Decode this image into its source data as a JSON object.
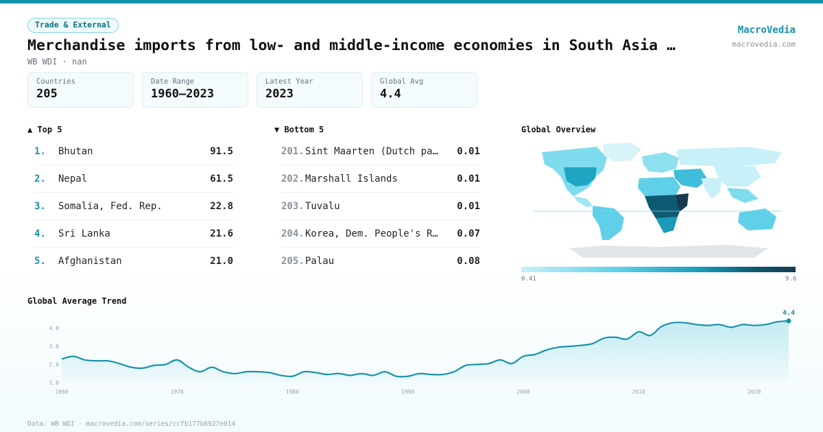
{
  "category": "Trade & External",
  "title": "Merchandise imports from low- and middle-income economies in South Asia …",
  "subtitle": "WB WDI · nan",
  "brand": {
    "name": "MacroVedia",
    "url": "macrovedia.com"
  },
  "stats": [
    {
      "label": "Countries",
      "value": "205"
    },
    {
      "label": "Date Range",
      "value": "1960–2023"
    },
    {
      "label": "Latest Year",
      "value": "2023"
    },
    {
      "label": "Global Avg",
      "value": "4.4"
    }
  ],
  "top5": {
    "heading": "▲ Top 5",
    "items": [
      {
        "rank": "1.",
        "name": "Bhutan",
        "value": "91.5"
      },
      {
        "rank": "2.",
        "name": "Nepal",
        "value": "61.5"
      },
      {
        "rank": "3.",
        "name": "Somalia, Fed. Rep.",
        "value": "22.8"
      },
      {
        "rank": "4.",
        "name": "Sri Lanka",
        "value": "21.6"
      },
      {
        "rank": "5.",
        "name": "Afghanistan",
        "value": "21.0"
      }
    ]
  },
  "bottom5": {
    "heading": "▼ Bottom 5",
    "items": [
      {
        "rank": "201.",
        "name": "Sint Maarten (Dutch pa…",
        "value": "0.01"
      },
      {
        "rank": "202.",
        "name": "Marshall Islands",
        "value": "0.01"
      },
      {
        "rank": "203.",
        "name": "Tuvalu",
        "value": "0.01"
      },
      {
        "rank": "204.",
        "name": "Korea, Dem. People's R…",
        "value": "0.07"
      },
      {
        "rank": "205.",
        "name": "Palau",
        "value": "0.08"
      }
    ]
  },
  "map": {
    "heading": "Global Overview",
    "legend_min": "0.41",
    "legend_max": "9.6",
    "colors": [
      "#c8f0f8",
      "#5fd0e8",
      "#1b9bb8",
      "#0e5a72",
      "#173a4f"
    ]
  },
  "trend": {
    "heading": "Global Average Trend",
    "latest_label": "4.4"
  },
  "footer": "Data: WB WDI · macrovedia.com/series/ccfb177b6927e014",
  "chart_data": {
    "type": "area",
    "title": "Global Average Trend",
    "xlabel": "",
    "ylabel": "",
    "xlim": [
      1960,
      2023
    ],
    "ylim": [
      1.0,
      4.4
    ],
    "x_ticks": [
      1960,
      1970,
      1980,
      1990,
      2000,
      2010,
      2020
    ],
    "y_ticks": [
      1.0,
      2.0,
      3.0,
      4.0
    ],
    "grid": false,
    "color": "#1592ab",
    "x": [
      1960,
      1961,
      1962,
      1963,
      1964,
      1965,
      1966,
      1967,
      1968,
      1969,
      1970,
      1971,
      1972,
      1973,
      1974,
      1975,
      1976,
      1977,
      1978,
      1979,
      1980,
      1981,
      1982,
      1983,
      1984,
      1985,
      1986,
      1987,
      1988,
      1989,
      1990,
      1991,
      1992,
      1993,
      1994,
      1995,
      1996,
      1997,
      1998,
      1999,
      2000,
      2001,
      2002,
      2003,
      2004,
      2005,
      2006,
      2007,
      2008,
      2009,
      2010,
      2011,
      2012,
      2013,
      2014,
      2015,
      2016,
      2017,
      2018,
      2019,
      2020,
      2021,
      2022,
      2023
    ],
    "y": [
      2.3,
      2.45,
      2.25,
      2.2,
      2.2,
      2.05,
      1.85,
      1.8,
      1.95,
      2.0,
      2.25,
      1.85,
      1.6,
      1.85,
      1.6,
      1.5,
      1.6,
      1.6,
      1.55,
      1.4,
      1.35,
      1.6,
      1.55,
      1.45,
      1.5,
      1.4,
      1.5,
      1.4,
      1.6,
      1.35,
      1.35,
      1.5,
      1.45,
      1.45,
      1.6,
      1.95,
      2.0,
      2.05,
      2.25,
      2.05,
      2.45,
      2.55,
      2.8,
      2.95,
      3.0,
      3.05,
      3.15,
      3.45,
      3.5,
      3.4,
      3.8,
      3.6,
      4.1,
      4.3,
      4.3,
      4.2,
      4.15,
      4.2,
      4.05,
      4.2,
      4.15,
      4.2,
      4.35,
      4.4
    ]
  }
}
